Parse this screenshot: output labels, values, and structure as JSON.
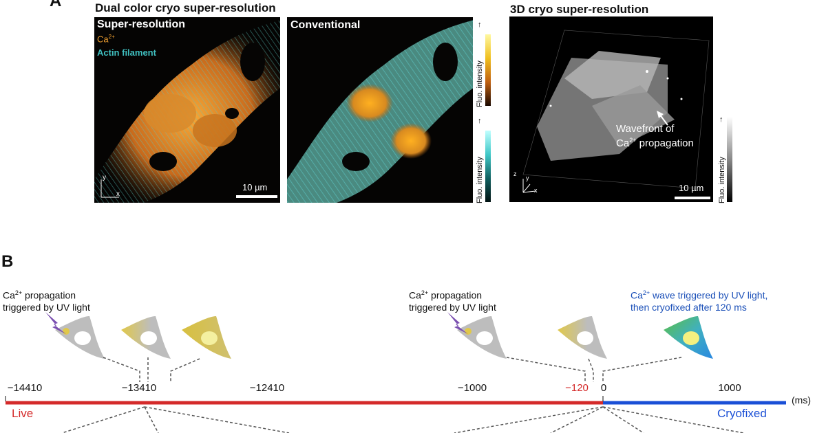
{
  "panel_a": {
    "letter": "A",
    "title_dual": "Dual color cryo super-resolution",
    "title_3d": "3D cryo super-resolution",
    "label_super": "Super-resolution",
    "label_ca": "Ca",
    "label_ca_sup": "2+",
    "label_actin": "Actin filament",
    "label_conventional": "Conventional",
    "axis_y": "y",
    "axis_x": "x",
    "axis_z": "z",
    "scale_text": "10 µm",
    "fluo_label": "Fluo. intensity",
    "annotation_line1": "Wavefront of",
    "annotation_ca": "Ca",
    "annotation_sup": "2+",
    "annotation_rest": "propagation",
    "colors": {
      "ca": "#f0a030",
      "actin": "#40c0c0"
    }
  },
  "panel_b": {
    "letter": "B",
    "note_left_ca": "Ca",
    "note_left_sup": "2+",
    "note_left_rest": " propagation",
    "note_left_line2": "triggered by UV light",
    "note_mid_ca": "Ca",
    "note_mid_sup": "2+",
    "note_mid_rest": " propagation",
    "note_mid_line2": "triggered by UV light",
    "note_right_ca": "Ca",
    "note_right_sup": "2+",
    "note_right_rest": " wave triggered by UV light,",
    "note_right_line2": "then cryofixed after 120 ms",
    "ticks": [
      "−14410",
      "−13410",
      "−12410",
      "−1000",
      "−120",
      "0",
      "1000"
    ],
    "unit": "(ms)",
    "live_label": "Live",
    "cryofixed_label": "Cryofixed",
    "colors": {
      "live": "#d42a2a",
      "cryofixed": "#1a4fd6",
      "uv": "#7a4fb0",
      "right_note": "#1a4fb8"
    }
  }
}
